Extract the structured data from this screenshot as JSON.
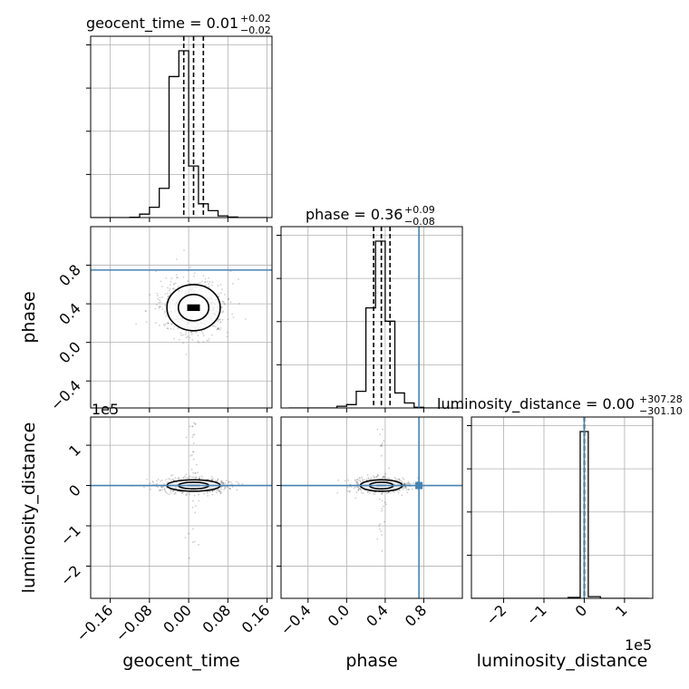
{
  "chart_data": {
    "type": "corner",
    "parameters": [
      "geocent_time",
      "phase",
      "luminosity_distance"
    ],
    "axis_labels": {
      "x": [
        "geocent_time",
        "phase",
        "luminosity_distance"
      ],
      "y": [
        "phase",
        "luminosity_distance"
      ]
    },
    "titles": [
      {
        "text": "geocent_time = 0.01",
        "sup": "+0.02",
        "sub": "−0.02"
      },
      {
        "text": "phase = 0.36",
        "sup": "+0.09",
        "sub": "−0.08"
      },
      {
        "text": "luminosity_distance = 0.00",
        "sup": "+307.28",
        "sub": "−301.10"
      }
    ],
    "ranges": {
      "geocent_time": [
        -0.2,
        0.17
      ],
      "phase": [
        -0.68,
        1.2
      ],
      "luminosity_distance": [
        -280000,
        170000
      ]
    },
    "ticks": {
      "geocent_time": {
        "values": [
          -0.16,
          -0.08,
          0.0,
          0.08,
          0.16
        ],
        "labels": [
          "−0.16",
          "−0.08",
          "0.00",
          "0.08",
          "0.16"
        ]
      },
      "phase": {
        "values": [
          -0.4,
          0.0,
          0.4,
          0.8
        ],
        "labels": [
          "−0.4",
          "0.0",
          "0.4",
          "0.8"
        ]
      },
      "luminosity_distance": {
        "values": [
          -2,
          -1,
          0,
          1
        ],
        "labels": [
          "−2",
          "−1",
          "0",
          "1"
        ]
      }
    },
    "offset_text": "1e5",
    "truth": {
      "phase": 0.75,
      "luminosity_distance": 0
    },
    "histograms": {
      "geocent_time": {
        "edges": [
          -0.2,
          -0.18,
          -0.16,
          -0.14,
          -0.12,
          -0.1,
          -0.08,
          -0.06,
          -0.04,
          -0.02,
          0.0,
          0.02,
          0.04,
          0.06,
          0.08,
          0.1,
          0.12,
          0.14,
          0.16
        ],
        "counts": [
          0,
          0,
          0,
          0,
          0.2,
          2,
          6,
          17,
          82,
          97,
          30,
          8,
          4,
          1,
          0.3,
          0,
          0,
          0
        ],
        "quantiles": [
          -0.01,
          0.01,
          0.03
        ]
      },
      "phase": {
        "edges": [
          -0.6,
          -0.5,
          -0.4,
          -0.3,
          -0.2,
          -0.1,
          0.0,
          0.1,
          0.2,
          0.3,
          0.4,
          0.5,
          0.6,
          0.7,
          0.8,
          0.9,
          1.0
        ],
        "counts": [
          0,
          0,
          0,
          0,
          0,
          1,
          2,
          10,
          60,
          100,
          52,
          9,
          3,
          0.4,
          0,
          0
        ],
        "quantiles": [
          0.28,
          0.36,
          0.45
        ]
      },
      "luminosity_distance": {
        "edges": [
          -280000,
          -240000,
          -200000,
          -160000,
          -120000,
          -80000,
          -40000,
          -10000,
          10000,
          40000,
          80000,
          120000,
          160000
        ],
        "counts": [
          0,
          0,
          0,
          0,
          0,
          0,
          0.5,
          100,
          1,
          0,
          0,
          0
        ],
        "quantiles": [
          -300,
          0,
          300
        ]
      }
    },
    "density_centers": {
      "geocent_time_vs_phase": [
        0.01,
        0.36
      ],
      "geocent_time_vs_luminosity_distance": [
        0.01,
        0
      ],
      "phase_vs_luminosity_distance": [
        0.36,
        0
      ]
    },
    "grid": true,
    "colors": {
      "truth": "#4682b4",
      "hist": "#000000",
      "points": "#000000"
    }
  }
}
